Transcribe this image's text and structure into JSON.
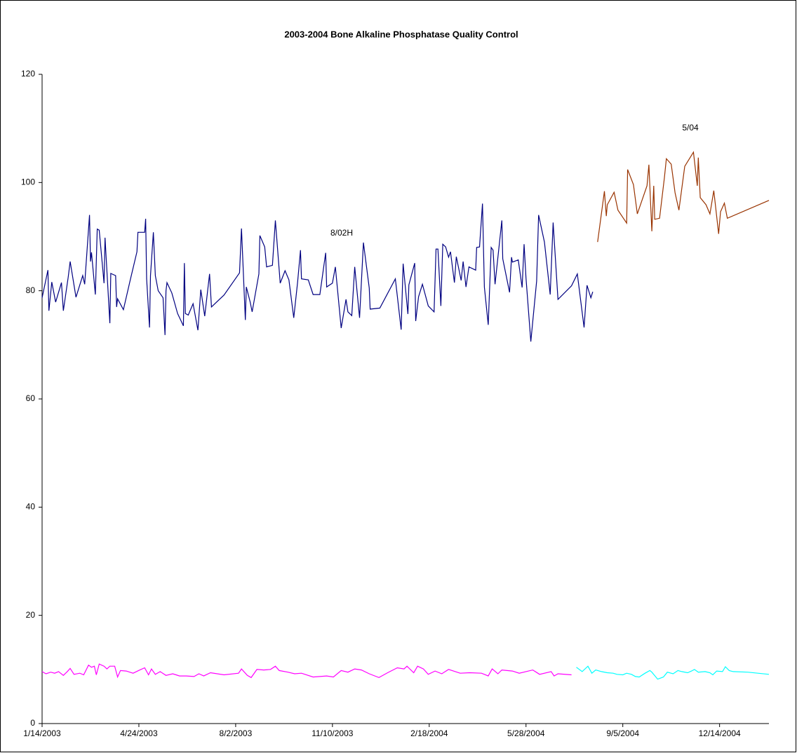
{
  "chart_data": {
    "type": "line",
    "title": "2003-2004 Bone Alkaline Phosphatase Quality Control",
    "annotations": [
      "8/02H",
      "5/04"
    ],
    "xlim": [
      37635,
      38386
    ],
    "xticks": [
      {
        "value": 37635,
        "label": "1/14/2003"
      },
      {
        "value": 37735,
        "label": "4/24/2003"
      },
      {
        "value": 37835,
        "label": "8/2/2003"
      },
      {
        "value": 37935,
        "label": "11/10/2003"
      },
      {
        "value": 38035,
        "label": "2/18/2004"
      },
      {
        "value": 38135,
        "label": "5/28/2004"
      },
      {
        "value": 38235,
        "label": "9/5/2004"
      },
      {
        "value": 38335,
        "label": "12/14/2004"
      }
    ],
    "ylim": [
      0,
      120
    ],
    "yticks": [
      0,
      20,
      40,
      60,
      80,
      100,
      120
    ],
    "grid": false,
    "series": [
      {
        "color": "#000080",
        "x": [
          37635,
          37641,
          37642,
          37645,
          37649,
          37655,
          37657,
          37662,
          37664,
          37670,
          37677,
          37679,
          37684,
          37685,
          37686,
          37690,
          37692,
          37694,
          37699,
          37700,
          37705,
          37706,
          37711,
          37712,
          37713,
          37719,
          37726,
          37733,
          37734,
          37741,
          37742,
          37743,
          37746,
          37747,
          37750,
          37752,
          37755,
          37760,
          37762,
          37763,
          37764,
          37769,
          37775,
          37781,
          37782,
          37783,
          37786,
          37791,
          37796,
          37799,
          37803,
          37808,
          37810,
          37823,
          37839,
          37841,
          37845,
          37846,
          37850,
          37852,
          37859,
          37860,
          37865,
          37867,
          37873,
          37876,
          37881,
          37886,
          37890,
          37895,
          37899,
          37902,
          37903,
          37910,
          37915,
          37922,
          37928,
          37929,
          37935,
          37938,
          37944,
          37949,
          37951,
          37955,
          37958,
          37963,
          37967,
          37973,
          37974,
          37984,
          38000,
          38006,
          38008,
          38013,
          38014,
          38020,
          38021,
          38024,
          38028,
          38034,
          38040,
          38042,
          38044,
          38047,
          38049,
          38052,
          38055,
          38057,
          38061,
          38063,
          38068,
          38070,
          38073,
          38076,
          38083,
          38084,
          38087,
          38090,
          38092,
          38096,
          38099,
          38101,
          38103,
          38110,
          38111,
          38118,
          38120,
          38121,
          38127,
          38131,
          38133,
          38135,
          38140,
          38146,
          38148,
          38154,
          38160,
          38163,
          38168,
          38182,
          38188,
          38195,
          38198,
          38202,
          38204
        ],
        "values": [
          78.7,
          83.8,
          76.3,
          81.6,
          77.9,
          81.5,
          76.3,
          82.5,
          85.4,
          78.8,
          82.8,
          81.2,
          94,
          85.4,
          87.1,
          79.3,
          91.4,
          91.2,
          81.4,
          89.8,
          74,
          83.2,
          82.8,
          77,
          78.5,
          76.5,
          81.9,
          87.2,
          90.8,
          90.8,
          93.3,
          82.2,
          73.2,
          82.8,
          90.8,
          82.8,
          80,
          78.7,
          71.8,
          80,
          81.5,
          79.6,
          75.8,
          73.5,
          85.1,
          75.8,
          75.5,
          77.6,
          72.7,
          80.2,
          75.3,
          83.1,
          77,
          79.2,
          83.3,
          91.5,
          74.6,
          80.7,
          77.9,
          76.1,
          83.1,
          90.2,
          88.1,
          84.4,
          84.7,
          93,
          81.4,
          83.7,
          82,
          75,
          81.6,
          87.5,
          82.2,
          82,
          79.3,
          79.3,
          87,
          80.7,
          81.4,
          84.4,
          73.1,
          78.4,
          76.1,
          75.4,
          84.4,
          75,
          88.9,
          80.5,
          76.6,
          76.8,
          82.2,
          72.8,
          85,
          75.7,
          81.1,
          85.1,
          74.4,
          78.9,
          81.2,
          77.2,
          76.1,
          87.7,
          87.7,
          77.2,
          88.6,
          88.1,
          86.2,
          87.2,
          81.5,
          86.3,
          81.9,
          85.4,
          80.7,
          84.4,
          83.8,
          88,
          88.1,
          96.1,
          80.7,
          73.7,
          88,
          87.5,
          81.2,
          93,
          85.9,
          79.7,
          86.2,
          85.3,
          85.7,
          80.6,
          88.6,
          82.4,
          70.6,
          81.8,
          94,
          89,
          79.3,
          92.6,
          78.4,
          80.9,
          83.1,
          73.2,
          81,
          78.7,
          79.8
        ]
      },
      {
        "color": "#993300",
        "x": [
          38209,
          38216,
          38218,
          38219,
          38226,
          38230,
          38239,
          38240,
          38246,
          38250,
          38260,
          38262,
          38265,
          38267,
          38268,
          38273,
          38278,
          38280,
          38285,
          38289,
          38293,
          38299,
          38308,
          38312,
          38313,
          38315,
          38321,
          38325,
          38329,
          38334,
          38336,
          38340,
          38343,
          38386
        ],
        "values": [
          89,
          98.4,
          93.8,
          95.9,
          98.2,
          94.9,
          92.5,
          102.4,
          99.6,
          94.2,
          99.4,
          103.3,
          91,
          99.4,
          93.2,
          93.4,
          100.9,
          104.4,
          103.4,
          98.1,
          94.9,
          103,
          105.6,
          99.4,
          104.6,
          97.2,
          95.9,
          94.2,
          98.5,
          90.5,
          94.6,
          96.2,
          93.4,
          96.7
        ]
      },
      {
        "color": "#ff00ff",
        "x": [
          37635,
          37639,
          37644,
          37648,
          37652,
          37657,
          37661,
          37664,
          37668,
          37674,
          37678,
          37683,
          37686,
          37689,
          37691,
          37694,
          37699,
          37702,
          37705,
          37710,
          37713,
          37716,
          37722,
          37729,
          37736,
          37741,
          37745,
          37748,
          37752,
          37757,
          37763,
          37770,
          37777,
          37784,
          37792,
          37797,
          37802,
          37809,
          37823,
          37838,
          37841,
          37847,
          37851,
          37857,
          37864,
          37871,
          37876,
          37880,
          37889,
          37896,
          37903,
          37915,
          37929,
          37936,
          37944,
          37951,
          37958,
          37965,
          37973,
          37983,
          37992,
          38002,
          38009,
          38012,
          38019,
          38023,
          38029,
          38034,
          38041,
          38048,
          38055,
          38067,
          38077,
          38089,
          38096,
          38100,
          38106,
          38110,
          38121,
          38128,
          38142,
          38149,
          38161,
          38164,
          38168,
          38182
        ],
        "values": [
          9.6,
          9.2,
          9.5,
          9.3,
          9.6,
          8.9,
          9.6,
          10.2,
          9.1,
          9.3,
          9.0,
          10.8,
          10.4,
          10.6,
          9.0,
          11.0,
          10.6,
          10.1,
          10.6,
          10.6,
          8.6,
          9.8,
          9.7,
          9.3,
          9.9,
          10.3,
          9.0,
          10.1,
          9.1,
          9.6,
          8.9,
          9.2,
          8.8,
          8.8,
          8.7,
          9.2,
          8.8,
          9.4,
          9.0,
          9.3,
          10.1,
          8.9,
          8.5,
          10.0,
          9.9,
          10.0,
          10.6,
          9.8,
          9.5,
          9.2,
          9.3,
          8.6,
          8.8,
          8.6,
          9.8,
          9.5,
          10.1,
          9.9,
          9.2,
          8.5,
          9.4,
          10.3,
          10.1,
          10.6,
          9.4,
          10.6,
          10.1,
          9.1,
          9.7,
          9.2,
          10.0,
          9.3,
          9.4,
          9.3,
          8.8,
          10.1,
          9.2,
          9.9,
          9.7,
          9.3,
          9.9,
          9.1,
          9.6,
          8.8,
          9.2,
          9.0
        ]
      },
      {
        "color": "#00ffff",
        "x": [
          38187,
          38193,
          38199,
          38203,
          38207,
          38213,
          38219,
          38225,
          38229,
          38235,
          38239,
          38244,
          38248,
          38252,
          38258,
          38263,
          38265,
          38271,
          38277,
          38281,
          38287,
          38292,
          38296,
          38302,
          38306,
          38309,
          38313,
          38320,
          38325,
          38328,
          38332,
          38338,
          38341,
          38345,
          38349,
          38364,
          38386
        ],
        "values": [
          10.4,
          9.6,
          10.6,
          9.3,
          9.9,
          9.6,
          9.4,
          9.3,
          9.1,
          9.0,
          9.3,
          9.1,
          8.7,
          8.6,
          9.3,
          9.8,
          9.5,
          8.2,
          8.6,
          9.5,
          9.2,
          9.8,
          9.6,
          9.4,
          9.7,
          10.0,
          9.5,
          9.6,
          9.4,
          9.0,
          9.7,
          9.6,
          10.5,
          9.8,
          9.6,
          9.5,
          9.1
        ]
      }
    ]
  }
}
